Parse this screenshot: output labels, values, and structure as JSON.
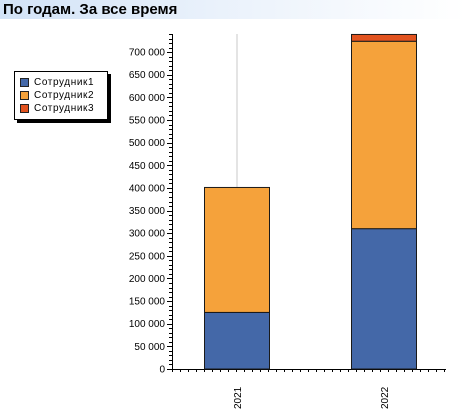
{
  "header": {
    "title": "По годам. За все время"
  },
  "colors": {
    "series_1": "#4468a8",
    "series_2": "#f5a23b",
    "series_3": "#e2531f",
    "grid": "#c8c8c8"
  },
  "chart_data": {
    "type": "bar",
    "stacked": true,
    "categories": [
      "2021",
      "2022"
    ],
    "series": [
      {
        "name": "Сотрудник1",
        "values": [
          125000,
          310000
        ],
        "color": "#4468a8"
      },
      {
        "name": "Сотрудник2",
        "values": [
          276000,
          414000
        ],
        "color": "#f5a23b"
      },
      {
        "name": "Сотрудник3",
        "values": [
          0,
          15000
        ],
        "color": "#e2531f"
      }
    ],
    "ylim": [
      0,
      740000
    ],
    "yticks": [
      "0",
      "50 000",
      "100 000",
      "150 000",
      "200 000",
      "250 000",
      "300 000",
      "350 000",
      "400 000",
      "450 000",
      "500 000",
      "550 000",
      "600 000",
      "650 000",
      "700 000"
    ],
    "ytick_values": [
      0,
      50000,
      100000,
      150000,
      200000,
      250000,
      300000,
      350000,
      400000,
      450000,
      500000,
      550000,
      600000,
      650000,
      700000
    ],
    "grid": true,
    "legend_position": "left"
  }
}
